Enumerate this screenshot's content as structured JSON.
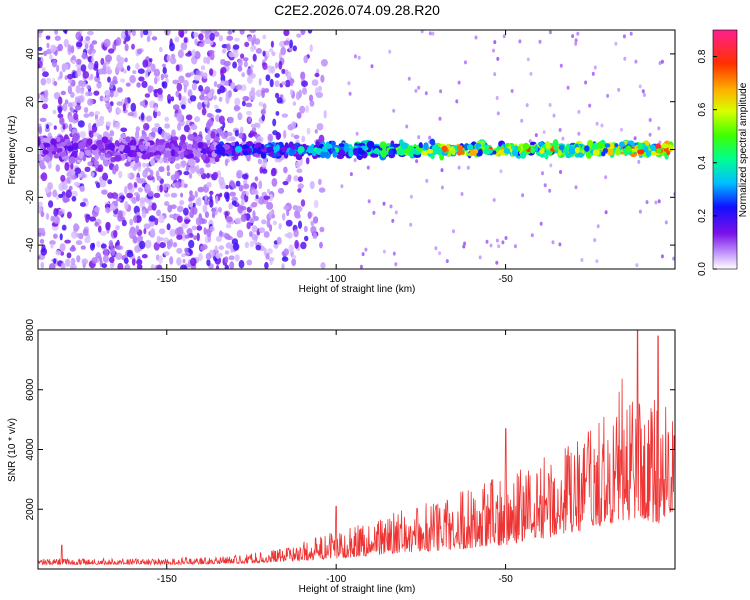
{
  "chart_data": [
    {
      "type": "heatmap",
      "title": "C2E2.2026.074.09.28.R20",
      "xlabel": "Height of straight line (km)",
      "ylabel": "Frequency (Hz)",
      "xlim": [
        -188,
        0
      ],
      "ylim": [
        -50,
        50
      ],
      "xticks": [
        -150,
        -100,
        -50
      ],
      "yticks": [
        40,
        20,
        0,
        -20,
        -40
      ],
      "xtick_labels": [
        "-150",
        "-100",
        "-50"
      ],
      "ytick_labels": [
        "40",
        "20",
        "0",
        "-20",
        "-40"
      ],
      "colorbar": {
        "label": "Normalized spectral amplitude",
        "range": [
          0,
          0.9
        ],
        "ticks": [
          0.0,
          0.2,
          0.4,
          0.6,
          0.8
        ],
        "tick_labels": [
          "0.0",
          "0.2",
          "0.4",
          "0.6",
          "0.8"
        ],
        "colors": [
          "#ffffff",
          "#b070ff",
          "#6000e0",
          "#0000ff",
          "#00c0ff",
          "#00ff80",
          "#40ff00",
          "#c0ff00",
          "#ffd000",
          "#ff6000",
          "#ff0000",
          "#ff2080"
        ]
      },
      "ridge": [
        {
          "x": -135,
          "amp": 0.3
        },
        {
          "x": -100,
          "amp": 0.45
        },
        {
          "x": -80,
          "amp": 0.6
        },
        {
          "x": -60,
          "amp": 0.8
        },
        {
          "x": -40,
          "amp": 0.7
        },
        {
          "x": -20,
          "amp": 0.75
        },
        {
          "x": -5,
          "amp": 0.88
        }
      ]
    },
    {
      "type": "line",
      "title": "",
      "xlabel": "Height of straight line (km)",
      "ylabel": "SNR (10 * v/v)",
      "xlim": [
        -188,
        0
      ],
      "ylim": [
        0,
        8000
      ],
      "xticks": [
        -150,
        -100,
        -50
      ],
      "yticks": [
        2000,
        4000,
        6000,
        8000
      ],
      "xtick_labels": [
        "-150",
        "-100",
        "-50"
      ],
      "ytick_labels": [
        "2000",
        "4000",
        "6000",
        "8000"
      ],
      "line_color": "#ee3333",
      "envelope": {
        "x": [
          -188,
          -170,
          -150,
          -130,
          -115,
          -100,
          -90,
          -80,
          -70,
          -60,
          -50,
          -40,
          -30,
          -20,
          -15,
          -10,
          -5,
          -2,
          0
        ],
        "base": [
          150,
          150,
          150,
          180,
          250,
          350,
          450,
          550,
          600,
          700,
          800,
          1000,
          1200,
          1500,
          1600,
          1700,
          1500,
          1800,
          2000
        ],
        "peak": [
          350,
          350,
          350,
          450,
          700,
          1300,
          1700,
          2000,
          2400,
          2800,
          3200,
          3800,
          4300,
          5200,
          6600,
          6000,
          6200,
          5500,
          5800
        ]
      },
      "notable_peaks": [
        {
          "x": -181,
          "y": 800
        },
        {
          "x": -100,
          "y": 2100
        },
        {
          "x": -50,
          "y": 4700
        },
        {
          "x": -11,
          "y": 8000
        },
        {
          "x": -5,
          "y": 7800
        }
      ]
    }
  ]
}
